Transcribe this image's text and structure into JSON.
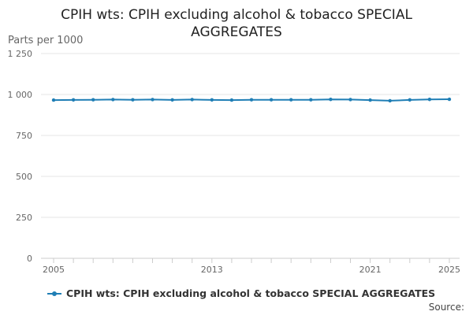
{
  "chart_data": {
    "type": "line",
    "title_line1": "CPIH wts: CPIH excluding alcohol & tobacco SPECIAL",
    "title_line2": "AGGREGATES",
    "ylabel": "Parts per 1000",
    "ylim": [
      0,
      1250
    ],
    "yticks": [
      0,
      250,
      500,
      750,
      1000,
      1250
    ],
    "ytick_labels": [
      "0",
      "250",
      "500",
      "750",
      "1 000",
      "1 250"
    ],
    "xlim": [
      2005,
      2025
    ],
    "xtick_labels": [
      "2005",
      "2013",
      "2021",
      "2025"
    ],
    "grid": true,
    "legend_position": "bottom-left",
    "color": "#1f7eb5",
    "series": [
      {
        "name": "CPIH wts: CPIH excluding alcohol & tobacco SPECIAL AGGREGATES",
        "x": [
          2005,
          2006,
          2007,
          2008,
          2009,
          2010,
          2011,
          2012,
          2013,
          2014,
          2015,
          2016,
          2017,
          2018,
          2019,
          2020,
          2021,
          2022,
          2023,
          2024,
          2025
        ],
        "values": [
          966,
          967,
          968,
          969,
          968,
          969,
          967,
          969,
          967,
          966,
          968,
          968,
          968,
          968,
          970,
          969,
          966,
          962,
          967,
          970,
          971
        ]
      }
    ]
  },
  "source_label": "Source:"
}
